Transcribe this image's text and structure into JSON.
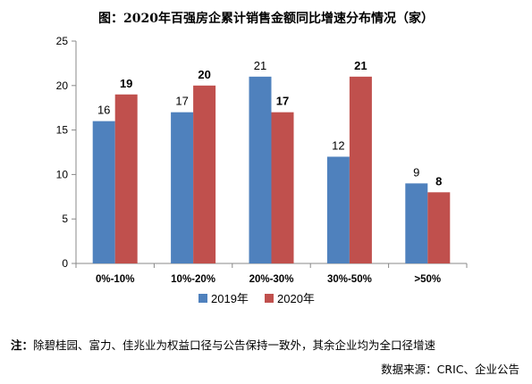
{
  "title": "图：2020年百强房企累计销售金额同比增速分布情况（家）",
  "note": {
    "lead": "注：",
    "text": "除碧桂园、富力、佳兆业为权益口径与公告保持一致外，其余企业均为全口径增速"
  },
  "source": "数据来源：CRIC、企业公告",
  "chart_data": {
    "type": "bar",
    "title": "图：2020年百强房企累计销售金额同比增速分布情况（家）",
    "categories": [
      "0%-10%",
      "10%-20%",
      "20%-30%",
      "30%-50%",
      ">50%"
    ],
    "series": [
      {
        "name": "2019年",
        "color": "#4f81bd",
        "values": [
          16,
          17,
          21,
          12,
          9
        ]
      },
      {
        "name": "2020年",
        "color": "#c0504d",
        "values": [
          19,
          20,
          17,
          21,
          8
        ]
      }
    ],
    "yticks": [
      0,
      5,
      10,
      15,
      20,
      25
    ],
    "ylim": [
      0,
      25
    ],
    "xlabel": "",
    "ylabel": "",
    "grid": false,
    "legend_position": "bottom"
  }
}
